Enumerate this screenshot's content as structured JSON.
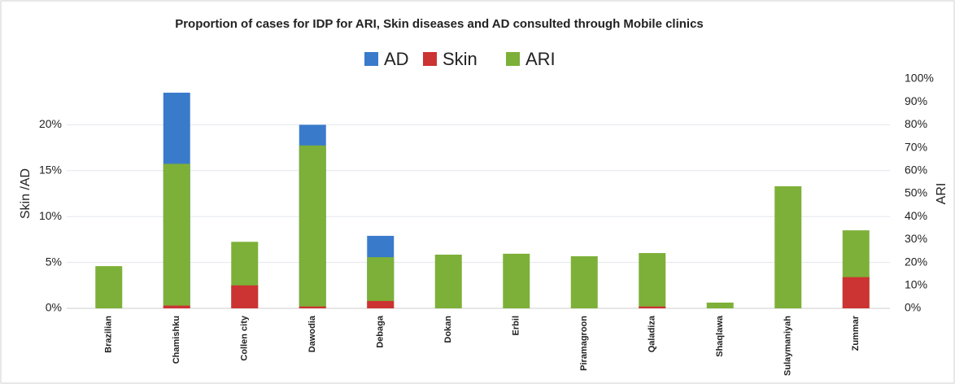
{
  "chart_data": {
    "type": "bar",
    "title": "Proportion of cases for IDP for ARI, Skin diseases and AD consulted through Mobile clinics",
    "y_label": "Skin /AD",
    "y2_label": "ARI",
    "categories": [
      "Brazilian",
      "Chamishku",
      "Collen city",
      "Dawodia",
      "Debaga",
      "Dokan",
      "Erbil",
      "Piramagroon",
      "Qaladiza",
      "Shaqlawa",
      "Sulaymaniyah",
      "Zummar"
    ],
    "series": [
      {
        "name": "AD",
        "color": "#3a7acb",
        "axis": "y",
        "values": [
          0,
          23.2,
          0,
          19.8,
          7.1,
          0,
          0,
          0,
          0,
          0,
          0,
          0
        ]
      },
      {
        "name": "Skin",
        "color": "#cc3333",
        "axis": "y",
        "values": [
          0,
          0.3,
          2.5,
          0.2,
          0.8,
          0,
          0,
          0,
          0.2,
          0,
          0,
          3.4
        ]
      },
      {
        "name": "ARI",
        "color": "#7db038",
        "axis": "y2",
        "values": [
          18.4,
          63,
          29,
          71,
          22.3,
          23.4,
          23.8,
          22.7,
          24.1,
          2.5,
          53.2,
          34
        ]
      }
    ],
    "ylim": [
      0,
      25
    ],
    "yticks": [
      {
        "value": 0,
        "label": "0%"
      },
      {
        "value": 5,
        "label": "5%"
      },
      {
        "value": 10,
        "label": "10%"
      },
      {
        "value": 15,
        "label": "15%"
      },
      {
        "value": 20,
        "label": "20%"
      }
    ],
    "y2lim": [
      0,
      100
    ],
    "y2ticks": [
      {
        "value": 0,
        "label": "0%"
      },
      {
        "value": 10,
        "label": "10%"
      },
      {
        "value": 20,
        "label": "20%"
      },
      {
        "value": 30,
        "label": "30%"
      },
      {
        "value": 40,
        "label": "40%"
      },
      {
        "value": 50,
        "label": "50%"
      },
      {
        "value": 60,
        "label": "60%"
      },
      {
        "value": 70,
        "label": "70%"
      },
      {
        "value": 80,
        "label": "80%"
      },
      {
        "value": 90,
        "label": "90%"
      },
      {
        "value": 100,
        "label": "100%"
      }
    ],
    "grid": true
  }
}
